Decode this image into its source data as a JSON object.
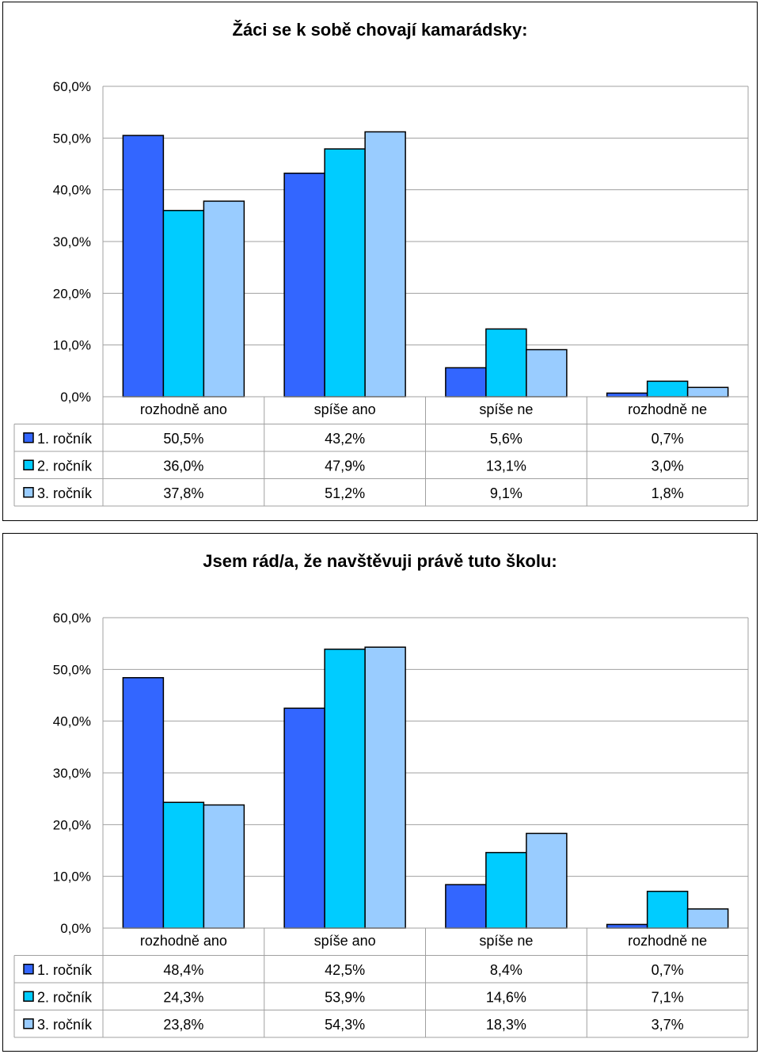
{
  "chart_data": [
    {
      "type": "bar",
      "title": "Žáci se k sobě chovají kamarádsky:",
      "categories": [
        "rozhodně ano",
        "spíše ano",
        "spíše ne",
        "rozhodně ne"
      ],
      "series": [
        {
          "name": "1. ročník",
          "color": "#3366FF",
          "values": [
            50.5,
            43.2,
            5.6,
            0.7
          ],
          "labels": [
            "50,5%",
            "43,2%",
            "5,6%",
            "0,7%"
          ]
        },
        {
          "name": "2. ročník",
          "color": "#00CCFF",
          "values": [
            36.0,
            47.9,
            13.1,
            3.0
          ],
          "labels": [
            "36,0%",
            "47,9%",
            "13,1%",
            "3,0%"
          ]
        },
        {
          "name": "3. ročník",
          "color": "#99CCFF",
          "values": [
            37.8,
            51.2,
            9.1,
            1.8
          ],
          "labels": [
            "37,8%",
            "51,2%",
            "9,1%",
            "1,8%"
          ]
        }
      ],
      "ylim": [
        0,
        60
      ],
      "yticks": [
        "0,0%",
        "10,0%",
        "20,0%",
        "30,0%",
        "40,0%",
        "50,0%",
        "60,0%"
      ],
      "xlabel": "",
      "ylabel": "",
      "grid": true,
      "legend": "data-table"
    },
    {
      "type": "bar",
      "title": "Jsem rád/a, že navštěvuji právě tuto školu:",
      "categories": [
        "rozhodně ano",
        "spíše ano",
        "spíše ne",
        "rozhodně ne"
      ],
      "series": [
        {
          "name": "1. ročník",
          "color": "#3366FF",
          "values": [
            48.4,
            42.5,
            8.4,
            0.7
          ],
          "labels": [
            "48,4%",
            "42,5%",
            "8,4%",
            "0,7%"
          ]
        },
        {
          "name": "2. ročník",
          "color": "#00CCFF",
          "values": [
            24.3,
            53.9,
            14.6,
            7.1
          ],
          "labels": [
            "24,3%",
            "53,9%",
            "14,6%",
            "7,1%"
          ]
        },
        {
          "name": "3. ročník",
          "color": "#99CCFF",
          "values": [
            23.8,
            54.3,
            18.3,
            3.7
          ],
          "labels": [
            "23,8%",
            "54,3%",
            "18,3%",
            "3,7%"
          ]
        }
      ],
      "ylim": [
        0,
        60
      ],
      "yticks": [
        "0,0%",
        "10,0%",
        "20,0%",
        "30,0%",
        "40,0%",
        "50,0%",
        "60,0%"
      ],
      "xlabel": "",
      "ylabel": "",
      "grid": true,
      "legend": "data-table"
    }
  ]
}
